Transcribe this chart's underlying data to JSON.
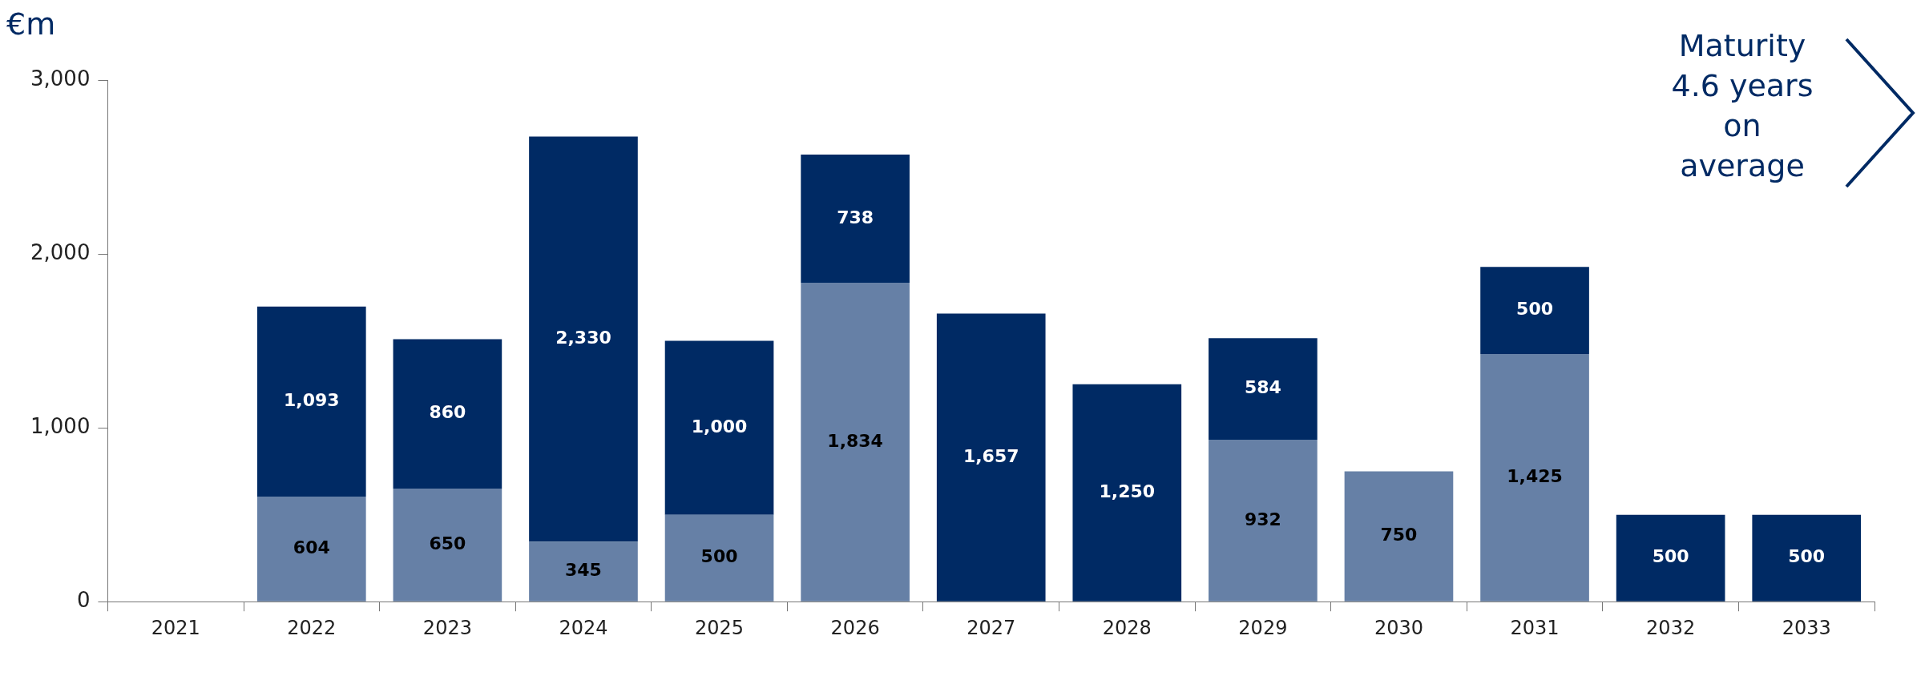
{
  "chart_data": {
    "type": "bar",
    "stacked": true,
    "ylabel": "€m",
    "annotations": [
      "Maturity 4.6 years on average"
    ],
    "categories": [
      "2021",
      "2022",
      "2023",
      "2024",
      "2025",
      "2026",
      "2027",
      "2028",
      "2029",
      "2030",
      "2031",
      "2032",
      "2033"
    ],
    "series": [
      {
        "color": "#6680a6",
        "values": [
          null,
          604,
          650,
          345,
          500,
          1834,
          null,
          null,
          932,
          750,
          1425,
          null,
          null
        ],
        "value_labels": [
          null,
          "604",
          "650",
          "345",
          "500",
          "1,834",
          null,
          null,
          "932",
          "750",
          "1,425",
          null,
          null
        ]
      },
      {
        "color": "#002a64",
        "values": [
          null,
          1093,
          860,
          2330,
          1000,
          738,
          1657,
          1250,
          584,
          null,
          500,
          500,
          500
        ],
        "value_labels": [
          null,
          "1,093",
          "860",
          "2,330",
          "1,000",
          "738",
          "1,657",
          "1,250",
          "584",
          null,
          "500",
          "500",
          "500"
        ]
      }
    ],
    "ylim": [
      0,
      3000
    ],
    "yticks": [
      0,
      {
        "value": 1000,
        "label": "1,000"
      },
      {
        "value": 2000,
        "label": "2,000"
      },
      {
        "value": 3000,
        "label": "3,000"
      }
    ],
    "legend": false
  }
}
